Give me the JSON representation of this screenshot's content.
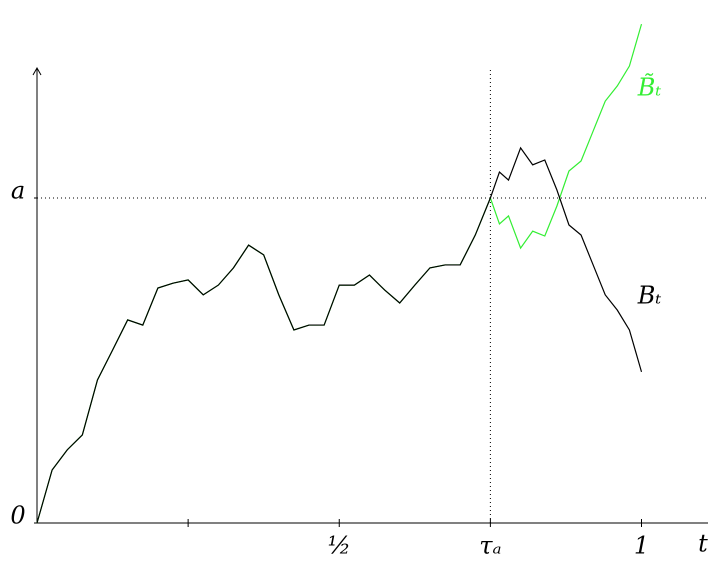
{
  "chart_data": {
    "type": "line",
    "x_label": "t",
    "xlim": [
      0,
      1.11
    ],
    "ylim": [
      0,
      1.4
    ],
    "xticks": [
      {
        "value": 0.25,
        "label": null
      },
      {
        "value": 0.5,
        "label": "½"
      },
      {
        "value": 0.75,
        "label": "τₐ"
      },
      1
    ],
    "yticks": [
      0,
      {
        "value": 1,
        "label": "a"
      }
    ],
    "guides": [
      {
        "axis": "y",
        "value": 1
      },
      {
        "axis": "x",
        "value": 0.75
      }
    ],
    "series": [
      {
        "name": "B̃ₜ",
        "color": "#33ee33",
        "x": [
          0,
          0.025,
          0.05,
          0.075,
          0.1,
          0.125,
          0.15,
          0.175,
          0.2,
          0.225,
          0.25,
          0.275,
          0.3,
          0.325,
          0.35,
          0.375,
          0.4,
          0.425,
          0.45,
          0.475,
          0.5,
          0.525,
          0.55,
          0.575,
          0.6,
          0.625,
          0.65,
          0.675,
          0.7,
          0.725,
          0.75,
          0.765,
          0.78,
          0.8,
          0.82,
          0.84,
          0.86,
          0.88,
          0.9,
          0.92,
          0.94,
          0.96,
          0.98,
          1.0
        ],
        "values": [
          0,
          0.163,
          0.225,
          0.271,
          0.44,
          0.532,
          0.625,
          0.609,
          0.723,
          0.738,
          0.748,
          0.702,
          0.732,
          0.785,
          0.855,
          0.825,
          0.702,
          0.594,
          0.609,
          0.609,
          0.732,
          0.732,
          0.763,
          0.717,
          0.677,
          0.732,
          0.785,
          0.794,
          0.794,
          0.886,
          1.0,
          0.92,
          0.945,
          0.846,
          0.898,
          0.883,
          0.975,
          1.083,
          1.114,
          1.206,
          1.298,
          1.345,
          1.406,
          1.535
        ]
      },
      {
        "name": "Bₜ",
        "color": "#000000",
        "x": [
          0,
          0.025,
          0.05,
          0.075,
          0.1,
          0.125,
          0.15,
          0.175,
          0.2,
          0.225,
          0.25,
          0.275,
          0.3,
          0.325,
          0.35,
          0.375,
          0.4,
          0.425,
          0.45,
          0.475,
          0.5,
          0.525,
          0.55,
          0.575,
          0.6,
          0.625,
          0.65,
          0.675,
          0.7,
          0.725,
          0.75,
          0.765,
          0.78,
          0.8,
          0.82,
          0.84,
          0.86,
          0.88,
          0.9,
          0.92,
          0.94,
          0.96,
          0.98,
          1.0
        ],
        "values": [
          0,
          0.163,
          0.225,
          0.271,
          0.44,
          0.532,
          0.625,
          0.609,
          0.723,
          0.738,
          0.748,
          0.702,
          0.732,
          0.785,
          0.855,
          0.825,
          0.702,
          0.594,
          0.609,
          0.609,
          0.732,
          0.732,
          0.763,
          0.717,
          0.677,
          0.732,
          0.785,
          0.794,
          0.794,
          0.886,
          1.0,
          1.08,
          1.055,
          1.154,
          1.102,
          1.117,
          1.025,
          0.917,
          0.886,
          0.794,
          0.702,
          0.655,
          0.594,
          0.465
        ]
      }
    ]
  }
}
